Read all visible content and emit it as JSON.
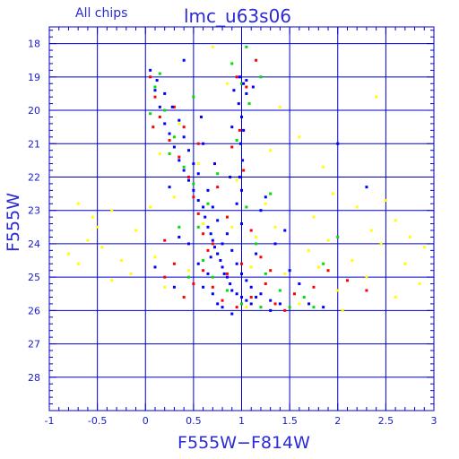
{
  "chart_data": {
    "type": "scatter",
    "title": "lmc_u63s06",
    "subtitle": "All chips",
    "xlabel": "F555W−F814W",
    "ylabel": "F555W",
    "xlim": [
      -1,
      3
    ],
    "ylim": [
      29,
      17.5
    ],
    "y_inverted": true,
    "grid": true,
    "x_ticks": [
      {
        "v": -1,
        "label": "-1"
      },
      {
        "v": -0.5,
        "label": "-0.5"
      },
      {
        "v": 0,
        "label": "0"
      },
      {
        "v": 0.5,
        "label": "0.5"
      },
      {
        "v": 1,
        "label": "1"
      },
      {
        "v": 1.5,
        "label": "1.5"
      },
      {
        "v": 2,
        "label": "2"
      },
      {
        "v": 2.5,
        "label": "2.5"
      },
      {
        "v": 3,
        "label": "3"
      }
    ],
    "y_ticks": [
      {
        "v": 18,
        "label": "18"
      },
      {
        "v": 19,
        "label": "19"
      },
      {
        "v": 20,
        "label": "20"
      },
      {
        "v": 21,
        "label": "21"
      },
      {
        "v": 22,
        "label": "22"
      },
      {
        "v": 23,
        "label": "23"
      },
      {
        "v": 24,
        "label": "24"
      },
      {
        "v": 25,
        "label": "25"
      },
      {
        "v": 26,
        "label": "26"
      },
      {
        "v": 27,
        "label": "27"
      },
      {
        "v": 28,
        "label": "28"
      }
    ],
    "series_colors": {
      "chip1": "#ffff00",
      "chip2": "#ff0000",
      "chip3": "#00dd00",
      "chip4": "#0000ff"
    },
    "series": [
      {
        "color": "#ffff00",
        "points": [
          [
            -0.7,
            22.8
          ],
          [
            -0.55,
            23.2
          ],
          [
            -0.35,
            23.0
          ],
          [
            -0.6,
            23.9
          ],
          [
            -0.45,
            24.1
          ],
          [
            -0.8,
            24.3
          ],
          [
            -0.25,
            24.5
          ],
          [
            -0.15,
            24.9
          ],
          [
            -0.35,
            25.1
          ],
          [
            -0.1,
            23.6
          ],
          [
            0.05,
            22.9
          ],
          [
            0.1,
            24.4
          ],
          [
            0.2,
            25.3
          ],
          [
            0.3,
            22.6
          ],
          [
            0.45,
            24.8
          ],
          [
            -0.5,
            23.5
          ],
          [
            1.7,
            24.2
          ],
          [
            1.8,
            24.7
          ],
          [
            1.9,
            23.9
          ],
          [
            2.0,
            25.4
          ],
          [
            2.15,
            24.5
          ],
          [
            2.3,
            25.0
          ],
          [
            2.45,
            24.0
          ],
          [
            2.6,
            23.3
          ],
          [
            2.7,
            24.6
          ],
          [
            2.85,
            25.2
          ],
          [
            2.6,
            25.6
          ],
          [
            2.35,
            23.6
          ],
          [
            2.2,
            22.9
          ],
          [
            1.95,
            22.5
          ],
          [
            1.75,
            23.2
          ],
          [
            1.6,
            25.8
          ],
          [
            1.45,
            24.9
          ],
          [
            1.35,
            23.5
          ],
          [
            1.25,
            22.8
          ],
          [
            1.15,
            23.8
          ],
          [
            1.1,
            24.7
          ],
          [
            2.5,
            22.7
          ],
          [
            2.9,
            24.1
          ],
          [
            1.85,
            21.7
          ],
          [
            2.4,
            19.6
          ],
          [
            1.6,
            20.8
          ],
          [
            0.9,
            23.5
          ],
          [
            0.55,
            21.6
          ],
          [
            0.85,
            19.2
          ],
          [
            0.7,
            18.1
          ],
          [
            0.35,
            20.4
          ],
          [
            1.4,
            19.9
          ],
          [
            2.05,
            26.0
          ],
          [
            2.75,
            23.8
          ],
          [
            -0.7,
            24.6
          ],
          [
            0.15,
            21.3
          ],
          [
            1.05,
            25.9
          ],
          [
            1.3,
            21.2
          ],
          [
            0.95,
            22.1
          ],
          [
            0.6,
            23.4
          ]
        ]
      },
      {
        "color": "#ff0000",
        "points": [
          [
            0.05,
            19.0
          ],
          [
            0.1,
            19.6
          ],
          [
            0.15,
            20.2
          ],
          [
            0.25,
            20.9
          ],
          [
            0.35,
            21.4
          ],
          [
            0.45,
            22.0
          ],
          [
            0.5,
            22.6
          ],
          [
            0.55,
            23.1
          ],
          [
            0.6,
            23.7
          ],
          [
            0.65,
            24.2
          ],
          [
            0.6,
            24.8
          ],
          [
            0.7,
            25.3
          ],
          [
            0.8,
            25.7
          ],
          [
            0.95,
            25.9
          ],
          [
            1.1,
            25.6
          ],
          [
            1.25,
            25.2
          ],
          [
            1.35,
            25.8
          ],
          [
            1.55,
            25.5
          ],
          [
            0.95,
            19.0
          ],
          [
            1.05,
            19.3
          ],
          [
            0.98,
            20.6
          ],
          [
            1.02,
            21.8
          ],
          [
            1.1,
            23.6
          ],
          [
            1.2,
            24.4
          ],
          [
            0.85,
            24.9
          ],
          [
            0.5,
            25.2
          ],
          [
            0.4,
            25.6
          ],
          [
            0.3,
            24.6
          ],
          [
            0.2,
            23.9
          ],
          [
            0.75,
            22.3
          ],
          [
            1.3,
            24.8
          ],
          [
            1.45,
            26.0
          ],
          [
            1.75,
            25.3
          ],
          [
            0.2,
            25.0
          ],
          [
            0.9,
            21.1
          ],
          [
            0.4,
            20.5
          ],
          [
            0.3,
            19.9
          ],
          [
            1.15,
            18.5
          ],
          [
            2.1,
            25.1
          ],
          [
            2.3,
            25.4
          ],
          [
            0.08,
            20.5
          ],
          [
            0.7,
            24.0
          ],
          [
            1.0,
            24.6
          ],
          [
            0.55,
            21.0
          ],
          [
            0.85,
            23.2
          ],
          [
            1.9,
            24.8
          ]
        ]
      },
      {
        "color": "#00dd00",
        "points": [
          [
            0.1,
            19.3
          ],
          [
            0.2,
            20.0
          ],
          [
            0.3,
            20.8
          ],
          [
            0.4,
            21.7
          ],
          [
            0.5,
            22.2
          ],
          [
            0.55,
            23.5
          ],
          [
            0.6,
            24.5
          ],
          [
            0.7,
            25.0
          ],
          [
            0.85,
            25.4
          ],
          [
            1.0,
            25.8
          ],
          [
            1.2,
            25.9
          ],
          [
            1.4,
            25.4
          ],
          [
            1.5,
            25.9
          ],
          [
            1.65,
            25.6
          ],
          [
            1.0,
            19.2
          ],
          [
            1.08,
            19.8
          ],
          [
            0.95,
            20.9
          ],
          [
            1.05,
            22.9
          ],
          [
            1.15,
            24.0
          ],
          [
            1.25,
            24.9
          ],
          [
            0.75,
            24.3
          ],
          [
            0.65,
            22.8
          ],
          [
            0.45,
            25.0
          ],
          [
            0.35,
            23.5
          ],
          [
            0.25,
            21.3
          ],
          [
            1.3,
            22.5
          ],
          [
            0.9,
            18.6
          ],
          [
            0.05,
            20.1
          ],
          [
            1.2,
            19.0
          ],
          [
            1.75,
            25.9
          ],
          [
            1.85,
            24.6
          ],
          [
            1.05,
            18.1
          ],
          [
            0.75,
            21.9
          ],
          [
            0.15,
            18.9
          ],
          [
            2.0,
            23.8
          ],
          [
            0.5,
            19.6
          ]
        ]
      },
      {
        "color": "#0000ff",
        "points": [
          [
            0.05,
            18.8
          ],
          [
            0.1,
            19.4
          ],
          [
            0.15,
            19.9
          ],
          [
            0.2,
            20.4
          ],
          [
            0.25,
            20.7
          ],
          [
            0.3,
            21.1
          ],
          [
            0.35,
            21.5
          ],
          [
            0.4,
            21.8
          ],
          [
            0.45,
            22.1
          ],
          [
            0.5,
            22.4
          ],
          [
            0.55,
            22.7
          ],
          [
            0.6,
            22.9
          ],
          [
            0.62,
            23.2
          ],
          [
            0.65,
            23.5
          ],
          [
            0.68,
            23.7
          ],
          [
            0.7,
            23.9
          ],
          [
            0.72,
            24.1
          ],
          [
            0.75,
            24.3
          ],
          [
            0.78,
            24.5
          ],
          [
            0.8,
            24.7
          ],
          [
            0.82,
            24.9
          ],
          [
            0.85,
            25.0
          ],
          [
            0.88,
            25.2
          ],
          [
            0.9,
            25.4
          ],
          [
            0.95,
            25.5
          ],
          [
            1.0,
            25.6
          ],
          [
            1.05,
            25.7
          ],
          [
            1.1,
            25.8
          ],
          [
            1.15,
            25.6
          ],
          [
            1.2,
            25.5
          ],
          [
            1.3,
            25.7
          ],
          [
            1.4,
            25.8
          ],
          [
            0.7,
            25.5
          ],
          [
            0.75,
            25.8
          ],
          [
            0.8,
            25.9
          ],
          [
            0.6,
            25.3
          ],
          [
            0.65,
            24.9
          ],
          [
            0.55,
            24.6
          ],
          [
            0.68,
            24.4
          ],
          [
            0.8,
            24.0
          ],
          [
            0.85,
            23.7
          ],
          [
            0.9,
            24.2
          ],
          [
            0.95,
            24.6
          ],
          [
            1.0,
            24.9
          ],
          [
            1.05,
            25.1
          ],
          [
            1.1,
            25.3
          ],
          [
            0.75,
            23.3
          ],
          [
            0.7,
            22.9
          ],
          [
            0.65,
            22.4
          ],
          [
            0.55,
            21.9
          ],
          [
            0.5,
            21.6
          ],
          [
            0.45,
            21.2
          ],
          [
            0.4,
            20.8
          ],
          [
            0.35,
            20.3
          ],
          [
            0.28,
            19.9
          ],
          [
            0.2,
            19.5
          ],
          [
            0.12,
            19.1
          ],
          [
            0.98,
            19.0
          ],
          [
            1.02,
            19.2
          ],
          [
            1.05,
            19.5
          ],
          [
            0.97,
            19.8
          ],
          [
            1.0,
            20.2
          ],
          [
            1.02,
            20.6
          ],
          [
            0.99,
            21.0
          ],
          [
            1.01,
            21.5
          ],
          [
            0.98,
            22.0
          ],
          [
            1.0,
            22.4
          ],
          [
            0.95,
            22.8
          ],
          [
            1.05,
            19.1
          ],
          [
            1.12,
            19.3
          ],
          [
            0.92,
            19.4
          ],
          [
            0.6,
            21.0
          ],
          [
            0.25,
            22.3
          ],
          [
            0.35,
            23.8
          ],
          [
            0.45,
            24.0
          ],
          [
            1.25,
            22.6
          ],
          [
            1.5,
            24.8
          ],
          [
            1.6,
            25.2
          ],
          [
            1.7,
            25.8
          ],
          [
            1.85,
            25.9
          ],
          [
            0.4,
            18.5
          ],
          [
            0.9,
            26.1
          ],
          [
            1.3,
            26.0
          ],
          [
            2.0,
            21.0
          ],
          [
            2.3,
            22.3
          ],
          [
            1.15,
            24.3
          ],
          [
            1.2,
            23.0
          ],
          [
            0.1,
            24.7
          ],
          [
            1.0,
            23.4
          ],
          [
            0.88,
            22.0
          ],
          [
            0.72,
            21.6
          ],
          [
            0.9,
            20.5
          ],
          [
            1.35,
            24.0
          ],
          [
            0.58,
            20.2
          ],
          [
            0.3,
            25.3
          ],
          [
            1.45,
            23.6
          ]
        ]
      }
    ]
  }
}
